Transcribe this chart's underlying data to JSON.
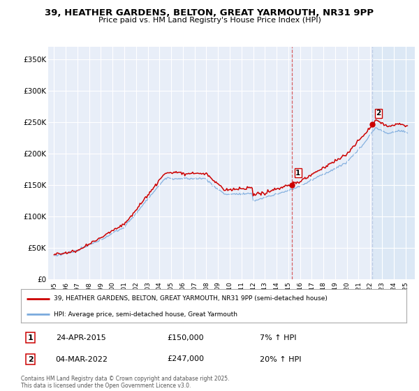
{
  "title": "39, HEATHER GARDENS, BELTON, GREAT YARMOUTH, NR31 9PP",
  "subtitle": "Price paid vs. HM Land Registry's House Price Index (HPI)",
  "footer": "Contains HM Land Registry data © Crown copyright and database right 2025.\nThis data is licensed under the Open Government Licence v3.0.",
  "legend_line1": "39, HEATHER GARDENS, BELTON, GREAT YARMOUTH, NR31 9PP (semi-detached house)",
  "legend_line2": "HPI: Average price, semi-detached house, Great Yarmouth",
  "transaction1_date": "24-APR-2015",
  "transaction1_price": "£150,000",
  "transaction1_hpi": "7% ↑ HPI",
  "transaction2_date": "04-MAR-2022",
  "transaction2_price": "£247,000",
  "transaction2_hpi": "20% ↑ HPI",
  "sale1_year": 2015.31,
  "sale1_price": 150000,
  "sale2_year": 2022.17,
  "sale2_price": 247000,
  "vline1_x": 2015.31,
  "vline2_x": 2022.17,
  "color_property": "#cc0000",
  "color_hpi": "#7aaadd",
  "color_vline1": "#cc0000",
  "color_vline2": "#aabbdd",
  "background_color": "#ffffff",
  "plot_bg_color": "#e8eef8",
  "shade_after_sale2_color": "#dce8f5",
  "ylim": [
    0,
    370000
  ],
  "xlim_start": 1994.5,
  "xlim_end": 2025.8,
  "yticks": [
    0,
    50000,
    100000,
    150000,
    200000,
    250000,
    300000,
    350000
  ],
  "ytick_labels": [
    "£0",
    "£50K",
    "£100K",
    "£150K",
    "£200K",
    "£250K",
    "£300K",
    "£350K"
  ],
  "xtick_years": [
    1995,
    1996,
    1997,
    1998,
    1999,
    2000,
    2001,
    2002,
    2003,
    2004,
    2005,
    2006,
    2007,
    2008,
    2009,
    2010,
    2011,
    2012,
    2013,
    2014,
    2015,
    2016,
    2017,
    2018,
    2019,
    2020,
    2021,
    2022,
    2023,
    2024,
    2025
  ]
}
